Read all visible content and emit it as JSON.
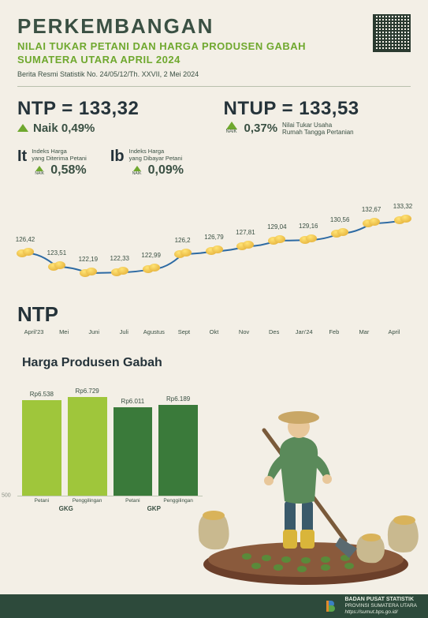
{
  "header": {
    "title": "PERKEMBANGAN",
    "subtitle_line1": "NILAI TUKAR PETANI DAN HARGA PRODUSEN GABAH",
    "subtitle_line2": "SUMATERA UTARA APRIL 2024",
    "issue": "Berita Resmi Statistik No. 24/05/12/Th. XXVII, 2 Mei 2024"
  },
  "ntp": {
    "label": "NTP = 133,32",
    "change_text": "Naik 0,49%"
  },
  "ntup": {
    "label": "NTUP = 133,53",
    "change_pct": "0,37%",
    "desc": "Nilai Tukar Usaha\nRumah Tangga Pertanian",
    "naik": "NAIK"
  },
  "it": {
    "symbol": "It",
    "desc": "Indeks Harga\nyang Diterima Petani",
    "value": "0,58%",
    "naik": "NAIK"
  },
  "ib": {
    "symbol": "Ib",
    "desc": "Indeks Harga\nyang Dibayar Petani",
    "value": "0,09%",
    "naik": "NAIK"
  },
  "linechart": {
    "type": "line",
    "months": [
      "April'23",
      "Mei",
      "Juni",
      "Juli",
      "Agustus",
      "Sept",
      "Okt",
      "Nov",
      "Des",
      "Jan'24",
      "Feb",
      "Mar",
      "April"
    ],
    "values": [
      126.42,
      123.51,
      122.19,
      122.33,
      122.99,
      126.2,
      126.79,
      127.81,
      129.04,
      129.16,
      130.56,
      132.67,
      133.32
    ],
    "labels": [
      "126,42",
      "123,51",
      "122,19",
      "122,33",
      "122,99",
      "126,2",
      "126,79",
      "127,81",
      "129,04",
      "129,16",
      "130,56",
      "132,67",
      "133,32"
    ],
    "ymin": 120,
    "ymax": 135,
    "line_color": "#2d6aa3",
    "line_width": 2,
    "bg": "#f3efe6",
    "label_fontsize": 8,
    "big_label": "NTP"
  },
  "barchart": {
    "type": "bar",
    "title": "Harga Produsen Gabah",
    "categories": [
      "Petani",
      "Penggilingan",
      "Petani",
      "Penggilingan"
    ],
    "groups": [
      "GKG",
      "GKP"
    ],
    "values": [
      6538,
      6729,
      6011,
      6189
    ],
    "value_labels": [
      "Rp6.538",
      "Rp6.729",
      "Rp6.011",
      "Rp6.189"
    ],
    "colors": [
      "#9fc63b",
      "#9fc63b",
      "#3a7a3a",
      "#3a7a3a"
    ],
    "ymax": 7000,
    "ytick_label": "500",
    "bg": "#f3efe6",
    "label_fontsize": 8
  },
  "footer": {
    "org": "BADAN PUSAT STATISTIK",
    "prov": "PROVINSI SUMATERA UTARA",
    "url": "https://sumut.bps.go.id/"
  },
  "colors": {
    "dark_green": "#3a5043",
    "lime": "#6fa82e",
    "footer_bg": "#2d4a3b",
    "page_bg": "#f3efe6"
  }
}
